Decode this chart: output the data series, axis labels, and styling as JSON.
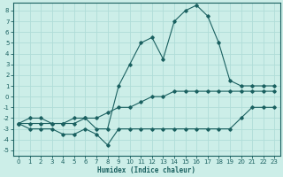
{
  "xlabel": "Humidex (Indice chaleur)",
  "xlim": [
    -0.5,
    23.5
  ],
  "ylim": [
    -5.5,
    8.7
  ],
  "xticks": [
    0,
    1,
    2,
    3,
    4,
    5,
    6,
    7,
    8,
    9,
    10,
    11,
    12,
    13,
    14,
    15,
    16,
    17,
    18,
    19,
    20,
    21,
    22,
    23
  ],
  "yticks": [
    -5,
    -4,
    -3,
    -2,
    -1,
    0,
    1,
    2,
    3,
    4,
    5,
    6,
    7,
    8
  ],
  "bg_color": "#cceee8",
  "line_color": "#1a6060",
  "grid_color": "#b0ddd8",
  "series1_x": [
    0,
    1,
    2,
    3,
    4,
    5,
    6,
    7,
    8,
    9,
    10,
    11,
    12,
    13,
    14,
    15,
    16,
    17,
    18,
    19,
    20,
    21,
    22,
    23
  ],
  "series1_y": [
    -2.5,
    -3,
    -3,
    -3,
    -3.5,
    -3.5,
    -3,
    -3.5,
    -4.5,
    -3,
    -3,
    -3,
    -3,
    -3,
    -3,
    -3,
    -3,
    -3,
    -3,
    -3,
    -2,
    -1,
    -1,
    -1
  ],
  "series2_x": [
    0,
    1,
    2,
    3,
    4,
    5,
    6,
    7,
    8,
    9,
    10,
    11,
    12,
    13,
    14,
    15,
    16,
    17,
    18,
    19,
    20,
    21,
    22,
    23
  ],
  "series2_y": [
    -2.5,
    -2.5,
    -2.5,
    -2.5,
    -2.5,
    -2.5,
    -2,
    -2,
    -1.5,
    -1,
    -1,
    -0.5,
    0,
    0,
    0.5,
    0.5,
    0.5,
    0.5,
    0.5,
    0.5,
    0.5,
    0.5,
    0.5,
    0.5
  ],
  "series3_x": [
    0,
    1,
    2,
    3,
    4,
    5,
    6,
    7,
    8,
    9,
    10,
    11,
    12,
    13,
    14,
    15,
    16,
    17,
    18,
    19,
    20,
    21,
    22,
    23
  ],
  "series3_y": [
    -2.5,
    -2,
    -2,
    -2.5,
    -2.5,
    -2,
    -2,
    -3,
    -3,
    1,
    3,
    5,
    5.5,
    3.5,
    7,
    8,
    8.5,
    7.5,
    5,
    1.5,
    1,
    1,
    1,
    1
  ],
  "linewidth": 0.8,
  "marker": "D",
  "markersize": 1.8,
  "tick_fontsize": 5,
  "xlabel_fontsize": 5.5
}
